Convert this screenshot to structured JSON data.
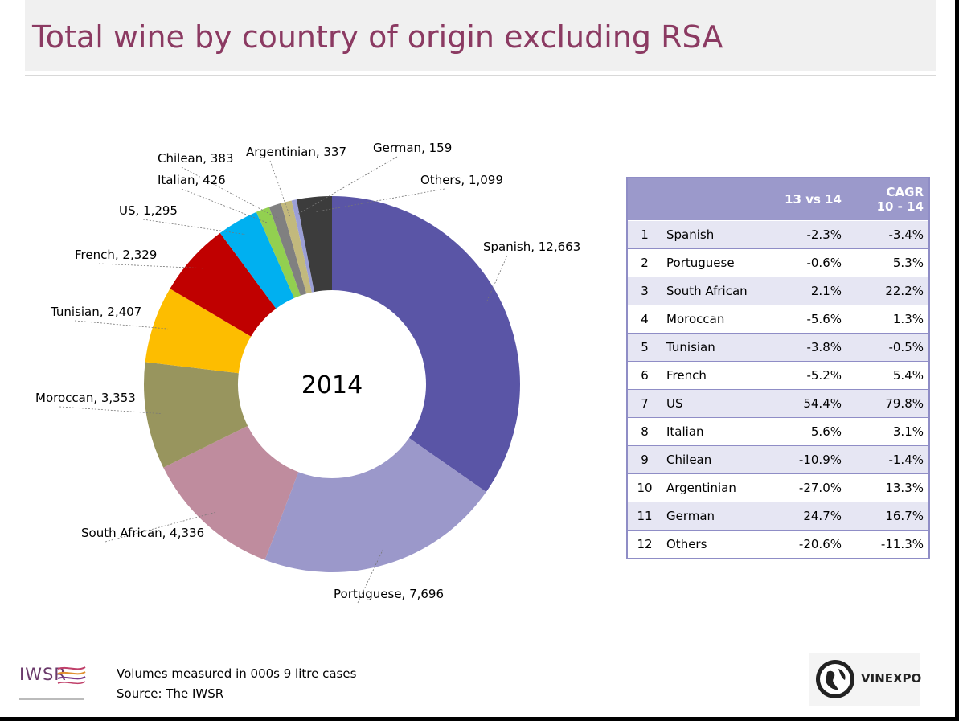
{
  "title": "Total wine by country of origin excluding RSA",
  "chart_data": {
    "type": "pie",
    "center_label": "2014",
    "categories": [
      "Spanish",
      "Portuguese",
      "South African",
      "Moroccan",
      "Tunisian",
      "French",
      "US",
      "Italian",
      "Chilean",
      "Argentinian",
      "German",
      "Others"
    ],
    "values": [
      12663,
      7696,
      4336,
      3353,
      2407,
      2329,
      1295,
      426,
      383,
      337,
      159,
      1099
    ],
    "value_labels": [
      "12,663",
      "7,696",
      "4,336",
      "3,353",
      "2,407",
      "2,329",
      "1,295",
      "426",
      "383",
      "337",
      "159",
      "1,099"
    ],
    "colors": [
      "#5a55a6",
      "#9b98ca",
      "#bf8c9e",
      "#98955e",
      "#fdbd00",
      "#c00000",
      "#00b0f0",
      "#92d050",
      "#808080",
      "#c2b97d",
      "#9b9fd6",
      "#3c3c3c"
    ]
  },
  "table": {
    "headers": [
      "",
      "",
      "13 vs 14",
      "CAGR\n10 - 14"
    ],
    "rows": [
      [
        "1",
        "Spanish",
        "-2.3%",
        "-3.4%"
      ],
      [
        "2",
        "Portuguese",
        "-0.6%",
        "5.3%"
      ],
      [
        "3",
        "South African",
        "2.1%",
        "22.2%"
      ],
      [
        "4",
        "Moroccan",
        "-5.6%",
        "1.3%"
      ],
      [
        "5",
        "Tunisian",
        "-3.8%",
        "-0.5%"
      ],
      [
        "6",
        "French",
        "-5.2%",
        "5.4%"
      ],
      [
        "7",
        "US",
        "54.4%",
        "79.8%"
      ],
      [
        "8",
        "Italian",
        "5.6%",
        "3.1%"
      ],
      [
        "9",
        "Chilean",
        "-10.9%",
        "-1.4%"
      ],
      [
        "10",
        "Argentinian",
        "-27.0%",
        "13.3%"
      ],
      [
        "11",
        "German",
        "24.7%",
        "16.7%"
      ],
      [
        "12",
        "Others",
        "-20.6%",
        "-11.3%"
      ]
    ]
  },
  "footer": {
    "note": "Volumes measured in 000s 9 litre cases",
    "source": "Source: The IWSR"
  },
  "logos": {
    "iwsr": "IWSR",
    "vinexpo": "VINEXPO"
  }
}
